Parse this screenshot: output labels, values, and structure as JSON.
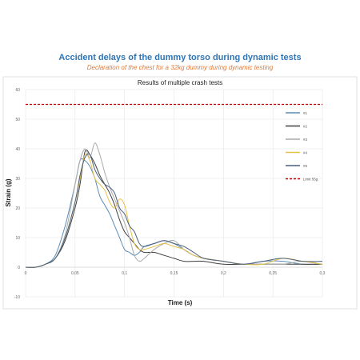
{
  "header": {
    "title": "Accident delays of the dummy torso during dynamic tests",
    "subtitle": "Declaration of the chest for a 32kg dummy during dynamic testing"
  },
  "chart_data": {
    "type": "line",
    "title": "Results of multiple crash tests",
    "xlabel": "Time (s)",
    "ylabel": "Strain (g)",
    "xlim": [
      0,
      0.3
    ],
    "ylim": [
      -10,
      60
    ],
    "x_ticks": [
      0,
      0.05,
      0.1,
      0.15,
      0.2,
      0.25,
      0.3
    ],
    "x_tick_labels": [
      "0",
      "0,05",
      "0,1",
      "0,15",
      "0,2",
      "0,25",
      "0,3"
    ],
    "y_ticks": [
      -10,
      0,
      10,
      20,
      30,
      40,
      50,
      60
    ],
    "y_tick_labels": [
      "-10",
      "0",
      "10",
      "20",
      "30",
      "40",
      "50",
      "60"
    ],
    "grid": true,
    "legend_position": "right",
    "series": [
      {
        "name": "#1",
        "color": "#5B8DB8",
        "x": [
          0,
          0.01,
          0.02,
          0.03,
          0.04,
          0.05,
          0.055,
          0.06,
          0.065,
          0.07,
          0.075,
          0.08,
          0.085,
          0.09,
          0.095,
          0.1,
          0.105,
          0.11,
          0.115,
          0.12,
          0.13,
          0.14,
          0.15,
          0.16,
          0.17,
          0.18,
          0.2,
          0.22,
          0.24,
          0.26,
          0.28,
          0.3
        ],
        "y": [
          0,
          0,
          1,
          4,
          14,
          28,
          36,
          36,
          34,
          30,
          24,
          21,
          18,
          14,
          10,
          6,
          5,
          4,
          5,
          7,
          8,
          9,
          8,
          6,
          4,
          3,
          2,
          1,
          2,
          2,
          1,
          1
        ]
      },
      {
        "name": "#2",
        "color": "#404040",
        "x": [
          0,
          0.01,
          0.02,
          0.03,
          0.04,
          0.05,
          0.055,
          0.06,
          0.065,
          0.07,
          0.075,
          0.08,
          0.085,
          0.09,
          0.095,
          0.1,
          0.105,
          0.11,
          0.115,
          0.12,
          0.13,
          0.14,
          0.15,
          0.16,
          0.17,
          0.18,
          0.2,
          0.22,
          0.24,
          0.26,
          0.28,
          0.3
        ],
        "y": [
          0,
          0,
          1,
          3,
          9,
          20,
          28,
          39,
          38,
          35,
          31,
          28,
          25,
          21,
          16,
          12,
          10,
          8,
          6,
          5,
          5,
          4,
          3,
          2,
          2,
          2,
          1,
          1,
          1,
          1,
          1,
          1
        ]
      },
      {
        "name": "#3",
        "color": "#AAAAAA",
        "x": [
          0,
          0.01,
          0.02,
          0.03,
          0.04,
          0.05,
          0.055,
          0.06,
          0.065,
          0.07,
          0.075,
          0.08,
          0.085,
          0.09,
          0.095,
          0.1,
          0.105,
          0.11,
          0.115,
          0.12,
          0.13,
          0.14,
          0.15,
          0.16,
          0.17,
          0.18,
          0.2,
          0.22,
          0.24,
          0.26,
          0.28,
          0.3
        ],
        "y": [
          0,
          0,
          1,
          3,
          11,
          28,
          36,
          40,
          37,
          42,
          38,
          32,
          27,
          23,
          19,
          15,
          10,
          4,
          2,
          3,
          6,
          8,
          9,
          6,
          4,
          3,
          2,
          1,
          1,
          1,
          2,
          1
        ]
      },
      {
        "name": "#4",
        "color": "#E8C04A",
        "x": [
          0,
          0.01,
          0.02,
          0.03,
          0.04,
          0.05,
          0.055,
          0.06,
          0.065,
          0.07,
          0.075,
          0.08,
          0.085,
          0.09,
          0.095,
          0.1,
          0.105,
          0.11,
          0.115,
          0.12,
          0.13,
          0.14,
          0.15,
          0.16,
          0.17,
          0.18,
          0.2,
          0.22,
          0.24,
          0.26,
          0.28,
          0.3
        ],
        "y": [
          0,
          0,
          1,
          3,
          10,
          22,
          30,
          38,
          36,
          30,
          28,
          26,
          22,
          20,
          23,
          21,
          14,
          8,
          6,
          6,
          7,
          8,
          7,
          6,
          4,
          3,
          2,
          1,
          1,
          3,
          2,
          1
        ]
      },
      {
        "name": "#5",
        "color": "#4A5F7A",
        "x": [
          0,
          0.01,
          0.02,
          0.03,
          0.04,
          0.05,
          0.055,
          0.06,
          0.065,
          0.07,
          0.075,
          0.08,
          0.085,
          0.09,
          0.095,
          0.1,
          0.105,
          0.11,
          0.115,
          0.12,
          0.13,
          0.14,
          0.15,
          0.16,
          0.17,
          0.18,
          0.2,
          0.22,
          0.24,
          0.26,
          0.28,
          0.3
        ],
        "y": [
          0,
          0,
          1,
          3,
          10,
          22,
          31,
          37,
          38,
          33,
          30,
          28,
          27,
          25,
          20,
          18,
          14,
          12,
          8,
          7,
          8,
          9,
          8,
          7,
          5,
          3,
          2,
          1,
          2,
          3,
          2,
          2
        ]
      },
      {
        "name": "Limit 55g",
        "color": "#C00000",
        "dashed": true,
        "x": [
          0,
          0.3
        ],
        "y": [
          55,
          55
        ]
      }
    ]
  }
}
